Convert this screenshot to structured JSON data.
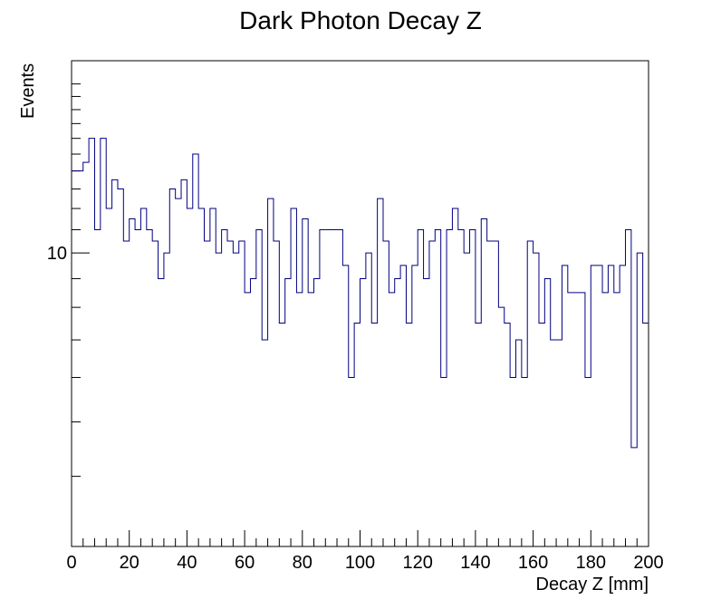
{
  "chart_data": {
    "type": "histogram",
    "title": "Dark Photon Decay Z",
    "xlabel": "Decay Z [mm]",
    "ylabel": "Events",
    "xlim": [
      0,
      200
    ],
    "ylim": [
      3,
      22
    ],
    "y_scale": "log",
    "grid": false,
    "legend": "none",
    "line_color": "#000080",
    "bin_width": 2,
    "x_ticks": [
      0,
      20,
      40,
      60,
      80,
      100,
      120,
      140,
      160,
      180,
      200
    ],
    "x_tick_labels": [
      "0",
      "20",
      "40",
      "60",
      "80",
      "100",
      "120",
      "140",
      "160",
      "180",
      "200"
    ],
    "y_ticks": [
      10
    ],
    "y_tick_labels": [
      "10"
    ],
    "values": [
      14,
      14,
      14.5,
      16,
      11,
      16,
      12,
      13.5,
      13,
      10.5,
      11.5,
      11,
      12,
      11,
      10.5,
      9,
      10,
      13,
      12.5,
      13.5,
      12,
      15,
      12,
      10.5,
      12,
      10,
      11,
      10.5,
      10,
      10.5,
      8.5,
      9,
      11,
      7,
      12.5,
      10.5,
      7.5,
      9,
      12,
      8.5,
      11.5,
      8.5,
      9,
      11,
      11,
      11,
      11,
      9.5,
      6,
      7.5,
      9,
      10,
      7.5,
      12.5,
      10.5,
      8.5,
      9,
      9.5,
      7.5,
      9.5,
      11,
      9,
      10.5,
      11,
      6,
      11,
      12,
      11,
      10,
      11,
      7.5,
      11.5,
      10.5,
      10.5,
      8,
      7.5,
      6,
      7,
      6,
      10.5,
      10,
      7.5,
      9,
      7,
      7,
      9.5,
      8.5,
      8.5,
      8.5,
      6,
      9.5,
      9.5,
      8.5,
      9.5,
      8.5,
      9.5,
      11,
      4.5,
      10,
      7.5
    ]
  }
}
